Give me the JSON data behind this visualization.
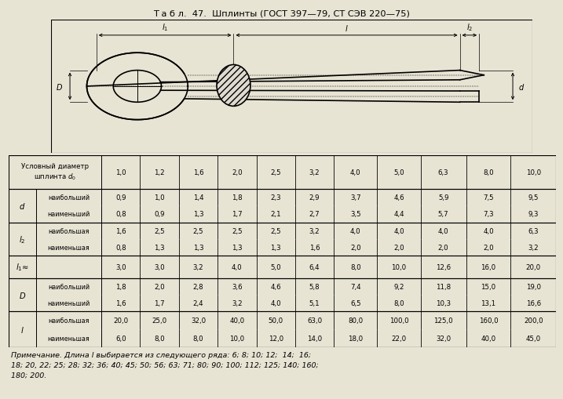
{
  "title": "Т а б л.  47.  Шплинты (ГОСТ 397—79, СТ СЭВ 220—75)",
  "bg_color": "#e8e4d4",
  "draw_bg": "#dedad0",
  "table_bg": "#e8e4d4",
  "header_row": [
    "Условный диаметр\nшплинта d₀",
    "1,0",
    "1,2",
    "1,6",
    "2,0",
    "2,5",
    "3,2",
    "4,0",
    "5,0",
    "6,3",
    "8,0",
    "10,0"
  ],
  "rows": [
    {
      "param": "d",
      "sub": [
        "наибольший",
        "наименьший"
      ],
      "values": [
        [
          "0,9",
          "1,0",
          "1,4",
          "1,8",
          "2,3",
          "2,9",
          "3,7",
          "4,6",
          "5,9",
          "7,5",
          "9,5"
        ],
        [
          "0,8",
          "0,9",
          "1,3",
          "1,7",
          "2,1",
          "2,7",
          "3,5",
          "4,4",
          "5,7",
          "7,3",
          "9,3"
        ]
      ]
    },
    {
      "param": "l_2",
      "sub": [
        "наибольшая",
        "наименьшая"
      ],
      "values": [
        [
          "1,6",
          "2,5",
          "2,5",
          "2,5",
          "2,5",
          "3,2",
          "4,0",
          "4,0",
          "4,0",
          "4,0",
          "6,3"
        ],
        [
          "0,8",
          "1,3",
          "1,3",
          "1,3",
          "1,3",
          "1,6",
          "2,0",
          "2,0",
          "2,0",
          "2,0",
          "3,2"
        ]
      ]
    },
    {
      "param": "l_1\\approx",
      "sub": [
        ""
      ],
      "values": [
        [
          "3,0",
          "3,0",
          "3,2",
          "4,0",
          "5,0",
          "6,4",
          "8,0",
          "10,0",
          "12,6",
          "16,0",
          "20,0"
        ]
      ]
    },
    {
      "param": "D",
      "sub": [
        "наибольший",
        "наименьший"
      ],
      "values": [
        [
          "1,8",
          "2,0",
          "2,8",
          "3,6",
          "4,6",
          "5,8",
          "7,4",
          "9,2",
          "11,8",
          "15,0",
          "19,0"
        ],
        [
          "1,6",
          "1,7",
          "2,4",
          "3,2",
          "4,0",
          "5,1",
          "6,5",
          "8,0",
          "10,3",
          "13,1",
          "16,6"
        ]
      ]
    },
    {
      "param": "l",
      "sub": [
        "наибольшая",
        "наименьшая"
      ],
      "values": [
        [
          "20,0",
          "25,0",
          "32,0",
          "40,0",
          "50,0",
          "63,0",
          "80,0",
          "100,0",
          "125,0",
          "160,0",
          "200,0"
        ],
        [
          "6,0",
          "8,0",
          "8,0",
          "10,0",
          "12,0",
          "14,0",
          "18,0",
          "22,0",
          "32,0",
          "40,0",
          "45,0"
        ]
      ]
    }
  ],
  "note": "Примечание. Длина l выбирается из следующего ряда: 6; 8; 10; 12;  14;  16;\n18; 20, 22; 25; 28; 32; 36; 40; 45; 50; 56; 63; 71; 80; 90; 100; 112; 125; 140; 160;\n180; 200."
}
